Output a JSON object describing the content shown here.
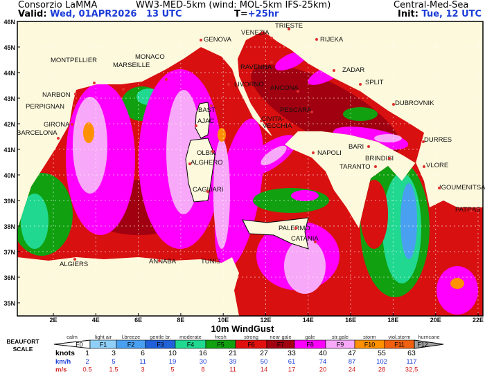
{
  "header": {
    "org": "Consorzio LaMMA",
    "model": "WW3-MED-5km (wind: MOL-5km IFS-25km)",
    "region": "Central-Med-Sea",
    "valid_label": "Valid:",
    "valid_value": "Wed, 01APR2026   13 UTC",
    "lead_label": "T=",
    "lead_value": "+25hr",
    "init_label": "Init:",
    "init_value": "Tue, 12 UTC"
  },
  "map": {
    "lat_ticks": [
      "46N",
      "45N",
      "44N",
      "43N",
      "42N",
      "41N",
      "40N",
      "39N",
      "38N",
      "37N",
      "36N",
      "35N"
    ],
    "lon_ticks": [
      "2E",
      "4E",
      "6E",
      "8E",
      "10E",
      "12E",
      "14E",
      "16E",
      "18E",
      "20E",
      "22E"
    ],
    "cities": [
      "TRIESTE",
      "VENEZIA",
      "RIJEKA",
      "RAVENNA",
      "ZADAR",
      "GENOVA",
      "MONTPELLIER",
      "MONACO",
      "MARSEILLE",
      "LIVORNO",
      "ANCONA",
      "SPLIT",
      "NARBON",
      "PERPIGNAN",
      "BAST",
      "DUBROVNIK",
      "PESCARA",
      "AJAC",
      "CIVITA-",
      "VECCHIA",
      "GIRONA",
      "BARCELONA",
      "OLBIA",
      "ALGHERO",
      "DURRES",
      "BARI",
      "NAPOLI",
      "BRINDISI",
      "TARANTO",
      "VLORE",
      "CAGLIARI",
      "IGOUMENITSA",
      "PATRAS",
      "PALERMO",
      "CATANIA",
      "ALGIERS",
      "ANNABA",
      "TUNIS"
    ]
  },
  "legend": {
    "title": "10m WindGust",
    "scale_label_1": "BEAUFORT",
    "scale_label_2": "SCALE",
    "names": [
      "calm",
      "light air",
      "l.breeze",
      "gentle br.",
      "moderate",
      "fresh",
      "strong",
      "near gale",
      "gale",
      "str.gale",
      "storm",
      "viol.storm",
      "hurricane"
    ],
    "forces": [
      "F0",
      "F1",
      "F2",
      "F3",
      "F4",
      "F5",
      "F6",
      "F7",
      "F8",
      "F9",
      "F10",
      "F11",
      "F12"
    ],
    "colors": [
      "#ffffff",
      "#90d0f8",
      "#4aa0f0",
      "#2060d8",
      "#20d890",
      "#10a010",
      "#e01010",
      "#a00010",
      "#ff00ff",
      "#f8a8f8",
      "#ff9000",
      "#f06010",
      "#a0a0a0"
    ],
    "units": [
      "knots",
      "km/h",
      "m/s"
    ],
    "knots": [
      "1",
      "3",
      "6",
      "10",
      "16",
      "21",
      "27",
      "33",
      "40",
      "47",
      "55",
      "63"
    ],
    "kmh": [
      "2",
      "5",
      "11",
      "19",
      "30",
      "39",
      "50",
      "61",
      "74",
      "87",
      "102",
      "117"
    ],
    "ms": [
      "0.5",
      "1.5",
      "3",
      "5",
      "8",
      "11",
      "14",
      "17",
      "20",
      "24",
      "28",
      "32,5"
    ]
  }
}
